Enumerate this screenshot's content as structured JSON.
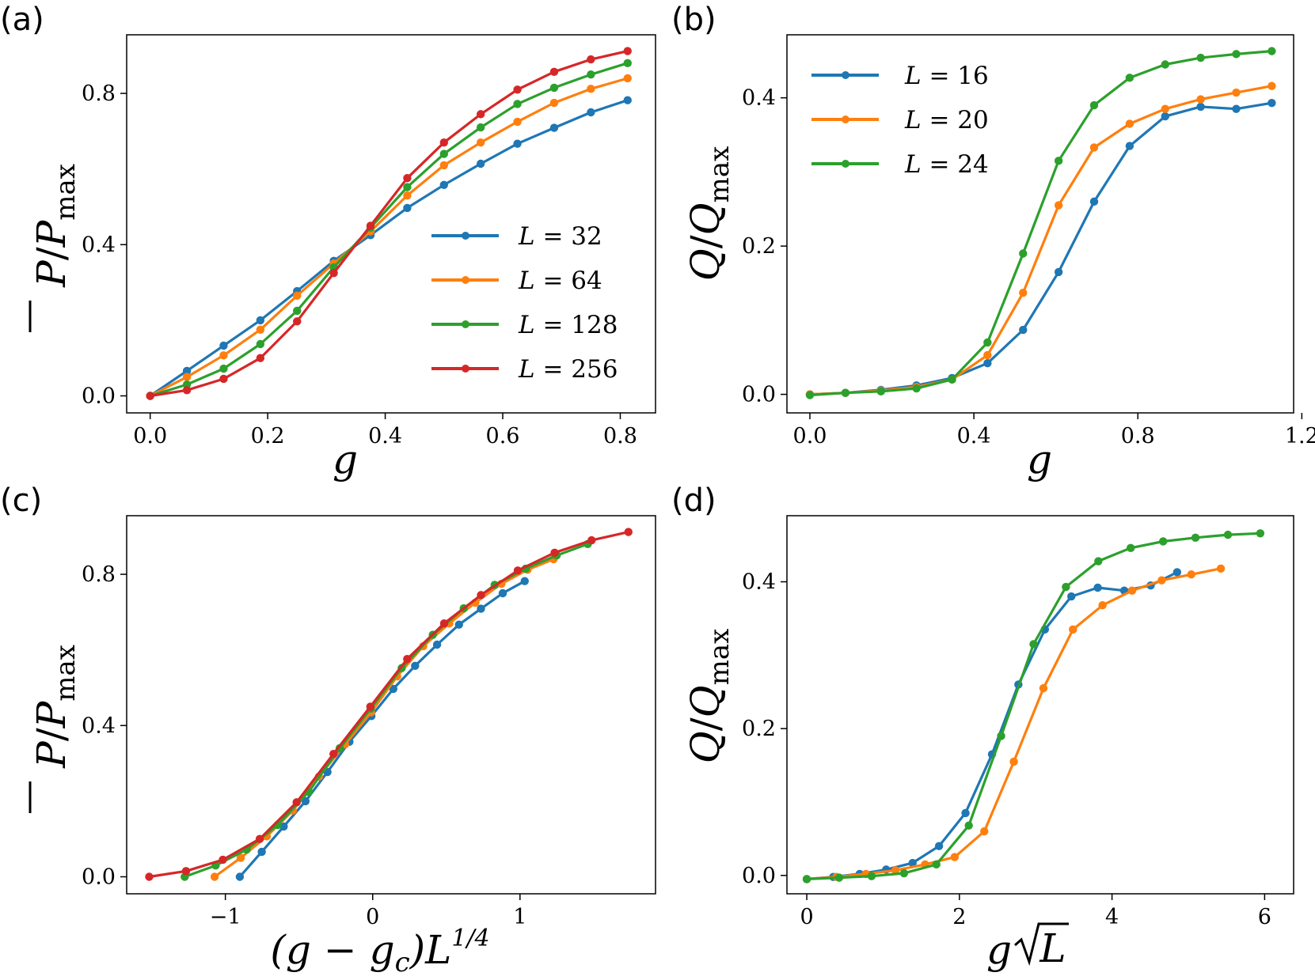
{
  "chart_data": [
    {
      "panel": "(a)",
      "type": "line",
      "xlabel": "g",
      "ylabel": "P̄/Pmax",
      "xlim": [
        -0.04,
        0.86
      ],
      "ylim": [
        -0.045,
        0.955
      ],
      "xticks": [
        0.0,
        0.2,
        0.4,
        0.6,
        0.8
      ],
      "xtick_labels": [
        "0.0",
        "0.2",
        "0.4",
        "0.6",
        "0.8"
      ],
      "yticks": [
        0.0,
        0.4,
        0.8
      ],
      "ytick_labels": [
        "0.0",
        "0.4",
        "0.8"
      ],
      "legend": {
        "placement": "lower-right"
      },
      "series": [
        {
          "name": "L = 32",
          "color": "#1f77b4",
          "x": [
            0.0,
            0.0625,
            0.125,
            0.1875,
            0.25,
            0.3125,
            0.375,
            0.4375,
            0.5,
            0.5625,
            0.625,
            0.6875,
            0.75,
            0.8125
          ],
          "y": [
            0.0,
            0.066,
            0.133,
            0.2,
            0.277,
            0.357,
            0.425,
            0.497,
            0.558,
            0.614,
            0.667,
            0.709,
            0.75,
            0.782
          ]
        },
        {
          "name": "L = 64",
          "color": "#ff7f0e",
          "x": [
            0.0,
            0.0625,
            0.125,
            0.1875,
            0.25,
            0.3125,
            0.375,
            0.4375,
            0.5,
            0.5625,
            0.625,
            0.6875,
            0.75,
            0.8125
          ],
          "y": [
            0.0,
            0.05,
            0.107,
            0.175,
            0.265,
            0.35,
            0.435,
            0.53,
            0.61,
            0.67,
            0.725,
            0.775,
            0.812,
            0.84
          ]
        },
        {
          "name": "L = 128",
          "color": "#2ca02c",
          "x": [
            0.0,
            0.0625,
            0.125,
            0.1875,
            0.25,
            0.3125,
            0.375,
            0.4375,
            0.5,
            0.5625,
            0.625,
            0.6875,
            0.75,
            0.8125
          ],
          "y": [
            0.0,
            0.03,
            0.072,
            0.137,
            0.225,
            0.34,
            0.445,
            0.552,
            0.64,
            0.71,
            0.772,
            0.815,
            0.85,
            0.88
          ]
        },
        {
          "name": "L = 256",
          "color": "#d62728",
          "x": [
            0.0,
            0.0625,
            0.125,
            0.1875,
            0.25,
            0.3125,
            0.375,
            0.4375,
            0.5,
            0.5625,
            0.625,
            0.6875,
            0.75,
            0.8125
          ],
          "y": [
            0.0,
            0.015,
            0.045,
            0.1,
            0.197,
            0.325,
            0.45,
            0.576,
            0.67,
            0.745,
            0.81,
            0.857,
            0.89,
            0.912
          ]
        }
      ]
    },
    {
      "panel": "(b)",
      "type": "line",
      "xlabel": "g",
      "ylabel": "Q/Qmax",
      "xlim": [
        -0.056,
        1.18
      ],
      "ylim": [
        -0.025,
        0.485
      ],
      "xticks": [
        0.0,
        0.4,
        0.8,
        1.2
      ],
      "xtick_labels": [
        "0.0",
        "0.4",
        "0.8",
        "1.2"
      ],
      "yticks": [
        0.0,
        0.2,
        0.4
      ],
      "ytick_labels": [
        "0.0",
        "0.2",
        "0.4"
      ],
      "legend": {
        "placement": "upper-left"
      },
      "series": [
        {
          "name": "L = 16",
          "color": "#1f77b4",
          "x": [
            0.0,
            0.0867,
            0.1733,
            0.26,
            0.3467,
            0.4333,
            0.52,
            0.6067,
            0.6933,
            0.78,
            0.8667,
            0.9533,
            1.04,
            1.1267
          ],
          "y": [
            0.0,
            0.002,
            0.006,
            0.012,
            0.022,
            0.042,
            0.087,
            0.165,
            0.26,
            0.335,
            0.375,
            0.388,
            0.385,
            0.393
          ]
        },
        {
          "name": "L = 20",
          "color": "#ff7f0e",
          "x": [
            0.0,
            0.0867,
            0.1733,
            0.26,
            0.3467,
            0.4333,
            0.52,
            0.6067,
            0.6933,
            0.78,
            0.8667,
            0.9533,
            1.04,
            1.1267
          ],
          "y": [
            0.0,
            0.002,
            0.005,
            0.01,
            0.02,
            0.053,
            0.137,
            0.255,
            0.333,
            0.365,
            0.385,
            0.398,
            0.407,
            0.416
          ]
        },
        {
          "name": "L = 24",
          "color": "#2ca02c",
          "x": [
            0.0,
            0.0867,
            0.1733,
            0.26,
            0.3467,
            0.4333,
            0.52,
            0.6067,
            0.6933,
            0.78,
            0.8667,
            0.9533,
            1.04,
            1.1267
          ],
          "y": [
            -0.001,
            0.002,
            0.004,
            0.008,
            0.02,
            0.07,
            0.19,
            0.315,
            0.39,
            0.427,
            0.445,
            0.454,
            0.459,
            0.463
          ]
        }
      ]
    },
    {
      "panel": "(c)",
      "type": "line",
      "xlabel": "(g − gc)L1/4",
      "ylabel": "P̄/Pmax",
      "xlim": [
        -1.67,
        1.92
      ],
      "ylim": [
        -0.045,
        0.955
      ],
      "xticks": [
        -1,
        0,
        1
      ],
      "xtick_labels": [
        "−1",
        "0",
        "1"
      ],
      "yticks": [
        0.0,
        0.4,
        0.8
      ],
      "ytick_labels": [
        "0.0",
        "0.4",
        "0.8"
      ],
      "series": [
        {
          "name": "L = 32",
          "color": "#1f77b4",
          "x": [
            -0.902,
            -0.753,
            -0.604,
            -0.456,
            -0.307,
            -0.158,
            -0.009,
            0.14,
            0.288,
            0.437,
            0.586,
            0.735,
            0.883,
            1.032
          ],
          "y": [
            0.0,
            0.066,
            0.133,
            0.2,
            0.277,
            0.357,
            0.425,
            0.497,
            0.558,
            0.614,
            0.667,
            0.709,
            0.75,
            0.782
          ]
        },
        {
          "name": "L = 64",
          "color": "#ff7f0e",
          "x": [
            -1.073,
            -0.896,
            -0.719,
            -0.542,
            -0.365,
            -0.188,
            -0.011,
            0.166,
            0.343,
            0.52,
            0.697,
            0.874,
            1.051,
            1.228
          ],
          "y": [
            0.0,
            0.05,
            0.107,
            0.175,
            0.265,
            0.35,
            0.435,
            0.53,
            0.61,
            0.67,
            0.725,
            0.775,
            0.812,
            0.84
          ]
        },
        {
          "name": "L = 128",
          "color": "#2ca02c",
          "x": [
            -1.276,
            -1.066,
            -0.855,
            -0.645,
            -0.434,
            -0.224,
            -0.013,
            0.197,
            0.408,
            0.618,
            0.828,
            1.039,
            1.249,
            1.46
          ],
          "y": [
            0.0,
            0.03,
            0.072,
            0.137,
            0.225,
            0.34,
            0.445,
            0.552,
            0.64,
            0.71,
            0.772,
            0.815,
            0.85,
            0.88
          ]
        },
        {
          "name": "L = 256",
          "color": "#d62728",
          "x": [
            -1.517,
            -1.267,
            -1.017,
            -0.767,
            -0.516,
            -0.266,
            -0.016,
            0.234,
            0.485,
            0.735,
            0.985,
            1.235,
            1.486,
            1.736
          ],
          "y": [
            0.0,
            0.015,
            0.045,
            0.1,
            0.197,
            0.325,
            0.45,
            0.576,
            0.67,
            0.745,
            0.81,
            0.857,
            0.89,
            0.912
          ]
        }
      ]
    },
    {
      "panel": "(d)",
      "type": "line",
      "xlabel": "g√L",
      "ylabel": "Q/Qmax",
      "xlim": [
        -0.26,
        6.38
      ],
      "ylim": [
        -0.025,
        0.49
      ],
      "xticks": [
        0,
        2,
        4,
        6
      ],
      "xtick_labels": [
        "0",
        "2",
        "4",
        "6"
      ],
      "yticks": [
        0.0,
        0.2,
        0.4
      ],
      "ytick_labels": [
        "0.0",
        "0.2",
        "0.4"
      ],
      "series": [
        {
          "name": "L = 16",
          "color": "#1f77b4",
          "x": [
            0.0,
            0.347,
            0.693,
            1.04,
            1.387,
            1.733,
            2.08,
            2.427,
            2.773,
            3.12,
            3.467,
            3.813,
            4.16,
            4.507,
            4.853
          ],
          "y": [
            -0.005,
            -0.002,
            0.002,
            0.008,
            0.017,
            0.04,
            0.085,
            0.165,
            0.26,
            0.335,
            0.38,
            0.392,
            0.388,
            0.395,
            0.413
          ]
        },
        {
          "name": "L = 20",
          "color": "#ff7f0e",
          "x": [
            0.0,
            0.388,
            0.775,
            1.163,
            1.55,
            1.938,
            2.326,
            2.713,
            3.101,
            3.488,
            3.876,
            4.263,
            4.651,
            5.039,
            5.426
          ],
          "y": [
            -0.005,
            -0.002,
            0.002,
            0.007,
            0.015,
            0.025,
            0.06,
            0.155,
            0.255,
            0.335,
            0.368,
            0.388,
            0.402,
            0.41,
            0.418
          ]
        },
        {
          "name": "L = 24",
          "color": "#2ca02c",
          "x": [
            0.0,
            0.425,
            0.849,
            1.274,
            1.698,
            2.123,
            2.547,
            2.972,
            3.396,
            3.821,
            4.245,
            4.67,
            5.094,
            5.519,
            5.943
          ],
          "y": [
            -0.005,
            -0.003,
            -0.001,
            0.003,
            0.015,
            0.068,
            0.19,
            0.315,
            0.393,
            0.428,
            0.446,
            0.455,
            0.46,
            0.464,
            0.466
          ]
        }
      ]
    }
  ]
}
